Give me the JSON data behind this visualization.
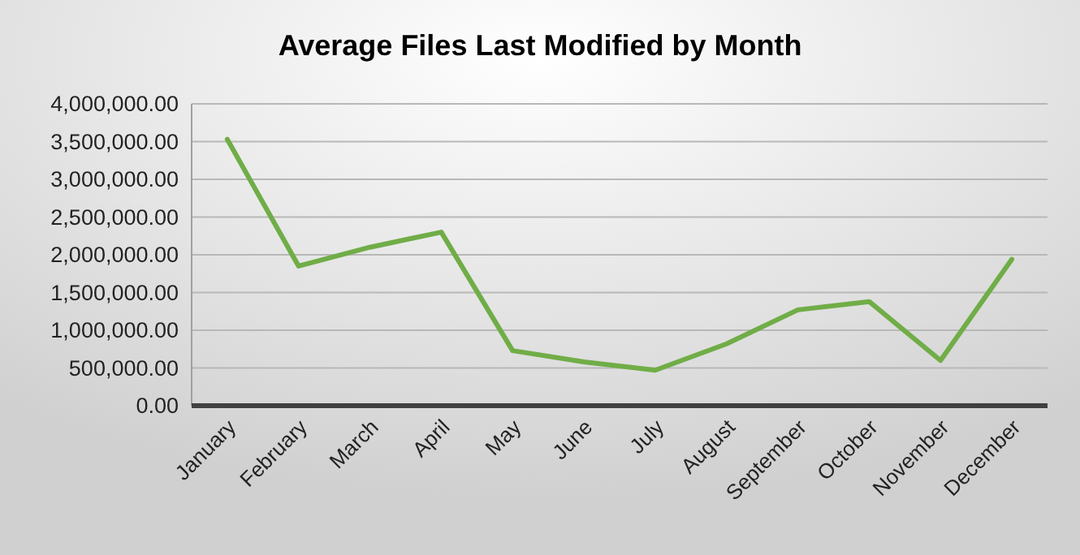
{
  "chart_data": {
    "type": "line",
    "title": "Average Files Last Modified by Month",
    "categories": [
      "January",
      "February",
      "March",
      "April",
      "May",
      "June",
      "July",
      "August",
      "September",
      "October",
      "November",
      "December"
    ],
    "series": [
      {
        "color": "#70ad47",
        "values": [
          3530000,
          1850000,
          2100000,
          2300000,
          730000,
          580000,
          470000,
          820000,
          1270000,
          1380000,
          600000,
          1940000
        ]
      }
    ],
    "ylim": [
      0,
      4000000
    ],
    "yticks": [
      {
        "value": 0,
        "label": "0.00"
      },
      {
        "value": 500000,
        "label": "500,000.00"
      },
      {
        "value": 1000000,
        "label": "1,000,000.00"
      },
      {
        "value": 1500000,
        "label": "1,500,000.00"
      },
      {
        "value": 2000000,
        "label": "2,000,000.00"
      },
      {
        "value": 2500000,
        "label": "2,500,000.00"
      },
      {
        "value": 3000000,
        "label": "3,000,000.00"
      },
      {
        "value": 3500000,
        "label": "3,500,000.00"
      },
      {
        "value": 4000000,
        "label": "4,000,000.00"
      }
    ],
    "grid": "y",
    "marker": "none",
    "line_style": "solid"
  }
}
